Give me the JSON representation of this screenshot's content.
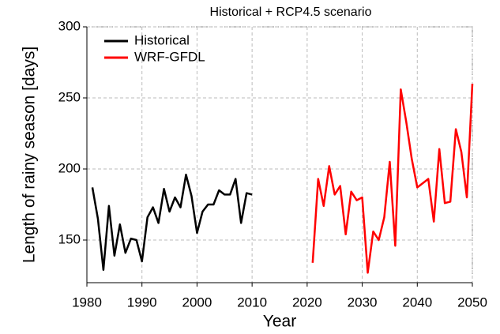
{
  "chart_data": {
    "type": "line",
    "title": "Historical + RCP4.5 scenario",
    "x_label": "Year",
    "y_label": "Length of rainy season [days]",
    "xlim": [
      1980,
      2050
    ],
    "xticks": [
      1980,
      1990,
      2000,
      2010,
      2020,
      2030,
      2040,
      2050
    ],
    "ylim": [
      120,
      300
    ],
    "yticks": [
      150,
      200,
      250,
      300
    ],
    "grid": true,
    "legend": "upper left",
    "series": [
      {
        "name": "Historical",
        "color": "#000000",
        "x": [
          1981,
          1982,
          1983,
          1984,
          1985,
          1986,
          1987,
          1988,
          1989,
          1990,
          1991,
          1992,
          1993,
          1994,
          1995,
          1996,
          1997,
          1998,
          1999,
          2000,
          2001,
          2002,
          2003,
          2004,
          2005,
          2006,
          2007,
          2008,
          2009,
          2010
        ],
        "values": [
          187,
          165,
          129,
          174,
          139,
          161,
          141,
          151,
          150,
          135,
          166,
          173,
          162,
          186,
          170,
          180,
          173,
          196,
          181,
          155,
          170,
          175,
          175,
          185,
          182,
          182,
          193,
          162,
          183,
          182
        ]
      },
      {
        "name": "WRF-GFDL",
        "color": "#ff0000",
        "x": [
          2021,
          2022,
          2023,
          2024,
          2025,
          2026,
          2027,
          2028,
          2029,
          2030,
          2031,
          2032,
          2033,
          2034,
          2035,
          2036,
          2037,
          2038,
          2039,
          2040,
          2041,
          2042,
          2043,
          2044,
          2045,
          2046,
          2047,
          2048,
          2049,
          2050
        ],
        "values": [
          134,
          193,
          174,
          202,
          182,
          188,
          154,
          184,
          178,
          180,
          127,
          156,
          150,
          166,
          205,
          146,
          256,
          233,
          207,
          187,
          190,
          193,
          163,
          214,
          176,
          177,
          228,
          212,
          180,
          260
        ]
      }
    ]
  }
}
